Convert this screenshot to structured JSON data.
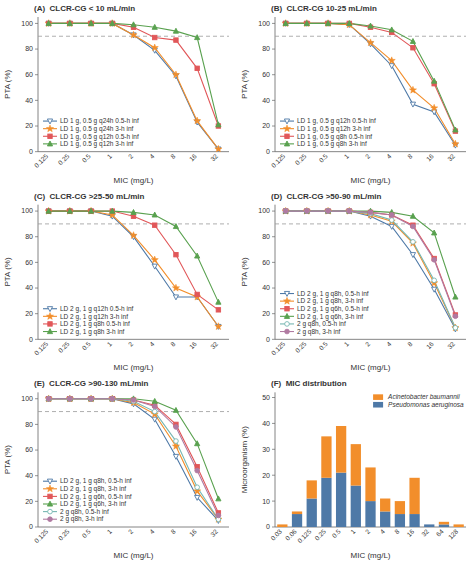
{
  "chart_data": [
    {
      "type": "line",
      "title": "(A)  CLCR-CG < 10 mL/min",
      "x_label": "MIC (mg/L)",
      "y_label": "PTA (%)",
      "categories": [
        "0.125",
        "0.25",
        "0.5",
        "1",
        "2",
        "4",
        "8",
        "16",
        "32"
      ],
      "series": [
        {
          "name": "LD 1 g, 0.5 g q24h 0.5-h inf",
          "marker": "triangle-down-open",
          "color": "#4e79a7",
          "values": [
            100,
            100,
            100,
            100,
            91,
            79,
            59,
            23,
            2
          ]
        },
        {
          "name": "LD 1 g, 0.5 g q24h 3-h inf",
          "marker": "star",
          "color": "#f28e2b",
          "values": [
            100,
            100,
            100,
            100,
            91,
            81,
            60,
            24,
            2
          ]
        },
        {
          "name": "LD 1 g, 0.5 g q12h 0.5-h inf",
          "marker": "square",
          "color": "#e15759",
          "values": [
            100,
            100,
            100,
            100,
            97,
            89,
            87,
            65,
            20
          ]
        },
        {
          "name": "LD 1 g, 0.5 g q12h 3-h inf",
          "marker": "triangle-up",
          "color": "#59a14f",
          "values": [
            100,
            100,
            100,
            100,
            99,
            97,
            94,
            89,
            21
          ]
        }
      ],
      "threshold": 90,
      "ylim": [
        0,
        105
      ],
      "yticks": [
        0,
        20,
        40,
        60,
        80,
        100
      ],
      "legend": "lower left",
      "grid": false
    },
    {
      "type": "line",
      "title": "(B)  CLCR-CG 10-25 mL/min",
      "x_label": "MIC (mg/L)",
      "y_label": "PTA (%)",
      "categories": [
        "0.125",
        "0.25",
        "0.5",
        "1",
        "2",
        "4",
        "8",
        "16",
        "32"
      ],
      "series": [
        {
          "name": "LD 1 g, 0.5 g q12h 0.5-h inf",
          "marker": "triangle-down-open",
          "color": "#4e79a7",
          "values": [
            100,
            100,
            100,
            99,
            84,
            67,
            37,
            31,
            5
          ]
        },
        {
          "name": "LD 1 g, 0.5 g q12h 3-h inf",
          "marker": "star",
          "color": "#f28e2b",
          "values": [
            100,
            100,
            100,
            99,
            85,
            71,
            48,
            34,
            6
          ]
        },
        {
          "name": "LD 1 g, 0.5 g q8h 0.5-h inf",
          "marker": "square",
          "color": "#e15759",
          "values": [
            100,
            100,
            100,
            100,
            97,
            93,
            81,
            53,
            16
          ]
        },
        {
          "name": "LD 1 g, 0.5 g q8h 3-h inf",
          "marker": "triangle-up",
          "color": "#59a14f",
          "values": [
            100,
            100,
            100,
            100,
            98,
            95,
            86,
            55,
            17
          ]
        }
      ],
      "threshold": 90,
      "ylim": [
        0,
        105
      ],
      "yticks": [
        0,
        20,
        40,
        60,
        80,
        100
      ],
      "legend": "lower left",
      "grid": false
    },
    {
      "type": "line",
      "title": "(C)  CLCR-CG >25-50 mL/min",
      "x_label": "MIC (mg/L)",
      "y_label": "PTA (%)",
      "categories": [
        "0.125",
        "0.25",
        "0.5",
        "1",
        "2",
        "4",
        "8",
        "16",
        "32"
      ],
      "series": [
        {
          "name": "LD 2 g, 1 g q12h 0.5-h inf",
          "marker": "triangle-down-open",
          "color": "#4e79a7",
          "values": [
            100,
            100,
            100,
            96,
            80,
            57,
            33,
            33,
            10
          ]
        },
        {
          "name": "LD 2 g, 1 g q12h 3-h inf",
          "marker": "star",
          "color": "#f28e2b",
          "values": [
            100,
            100,
            100,
            97,
            81,
            62,
            40,
            33,
            10
          ]
        },
        {
          "name": "LD 2 g, 1 g q8h 0.5-h inf",
          "marker": "square",
          "color": "#e15759",
          "values": [
            100,
            100,
            100,
            100,
            96,
            89,
            66,
            35,
            23
          ]
        },
        {
          "name": "LD 2 g, 1 g q8h 3-h inf",
          "marker": "triangle-up",
          "color": "#59a14f",
          "values": [
            100,
            100,
            100,
            100,
            99,
            97,
            88,
            65,
            29
          ]
        }
      ],
      "threshold": 90,
      "ylim": [
        0,
        105
      ],
      "yticks": [
        0,
        20,
        40,
        60,
        80,
        100
      ],
      "legend": "lower left",
      "grid": false
    },
    {
      "type": "line",
      "title": "(D)  CLCR-CG >50-90 mL/min",
      "x_label": "MIC (mg/L)",
      "y_label": "PTA (%)",
      "categories": [
        "0.125",
        "0.25",
        "0.5",
        "1",
        "2",
        "4",
        "8",
        "16",
        "32"
      ],
      "series": [
        {
          "name": "LD 2 g, 1 g q8h, 0.5-h inf",
          "marker": "triangle-down-open",
          "color": "#4e79a7",
          "values": [
            100,
            100,
            100,
            100,
            96,
            88,
            66,
            39,
            8
          ]
        },
        {
          "name": "LD 2 g, 1 g q8h, 3-h inf",
          "marker": "star",
          "color": "#f28e2b",
          "values": [
            100,
            100,
            100,
            100,
            97,
            92,
            75,
            44,
            9
          ]
        },
        {
          "name": "LD 2 g, 1 g q6h, 0.5-h inf",
          "marker": "square",
          "color": "#e15759",
          "values": [
            100,
            100,
            100,
            100,
            99,
            97,
            89,
            63,
            19
          ]
        },
        {
          "name": "LD 2 g, 1 g q6h, 3-h inf",
          "marker": "triangle-up",
          "color": "#59a14f",
          "values": [
            100,
            100,
            100,
            100,
            100,
            99,
            96,
            83,
            33
          ]
        },
        {
          "name": "2 g q8h, 0.5-h inf",
          "marker": "circle-open",
          "color": "#76b7b2",
          "values": [
            100,
            100,
            100,
            100,
            98,
            93,
            76,
            46,
            9
          ]
        },
        {
          "name": "2 g q8h, 3-h inf",
          "marker": "circle",
          "color": "#b07aa1",
          "values": [
            100,
            100,
            100,
            100,
            99,
            97,
            88,
            62,
            18
          ]
        }
      ],
      "threshold": 90,
      "ylim": [
        0,
        105
      ],
      "yticks": [
        0,
        20,
        40,
        60,
        80,
        100
      ],
      "legend": "lower left",
      "grid": false
    },
    {
      "type": "line",
      "title": "(E)  CLCR-CG >90-130 mL/min",
      "x_label": "MIC (mg/L)",
      "y_label": "PTA (%)",
      "categories": [
        "0.125",
        "0.25",
        "0.5",
        "1",
        "2",
        "4",
        "8",
        "16",
        "32"
      ],
      "series": [
        {
          "name": "LD 2 g, 1 g q8h, 0.5-h inf",
          "marker": "triangle-down-open",
          "color": "#4e79a7",
          "values": [
            100,
            100,
            100,
            100,
            96,
            84,
            55,
            23,
            5
          ]
        },
        {
          "name": "LD 2 g, 1 g q8h, 3-h inf",
          "marker": "star",
          "color": "#f28e2b",
          "values": [
            100,
            100,
            100,
            100,
            97,
            88,
            63,
            28,
            6
          ]
        },
        {
          "name": "LD 2 g, 1 g q6h, 0.5-h inf",
          "marker": "square",
          "color": "#e15759",
          "values": [
            100,
            100,
            100,
            100,
            99,
            95,
            80,
            47,
            11
          ]
        },
        {
          "name": "LD 2 g, 1 g q6h, 3-h inf",
          "marker": "triangle-up",
          "color": "#59a14f",
          "values": [
            100,
            100,
            100,
            100,
            100,
            98,
            91,
            65,
            22
          ]
        },
        {
          "name": "2 g q8h, 0.5-h inf",
          "marker": "circle-open",
          "color": "#76b7b2",
          "values": [
            100,
            100,
            100,
            100,
            98,
            90,
            67,
            31,
            6
          ]
        },
        {
          "name": "2 g q8h, 3-h inf",
          "marker": "circle",
          "color": "#b07aa1",
          "values": [
            100,
            100,
            100,
            100,
            99,
            94,
            78,
            44,
            9
          ]
        }
      ],
      "threshold": 90,
      "ylim": [
        0,
        105
      ],
      "yticks": [
        0,
        20,
        40,
        60,
        80,
        100
      ],
      "legend": "lower left",
      "grid": false
    },
    {
      "type": "bar",
      "stacked": true,
      "title": "(F)  MIC distribution",
      "x_label": "MIC (mg/L)",
      "y_label": "Microorganism (%)",
      "categories": [
        "0.03",
        "0.06",
        "0.125",
        "0.25",
        "0.5",
        "1",
        "2",
        "4",
        "8",
        "16",
        "32",
        "64",
        "128"
      ],
      "series": [
        {
          "name": "Pseudomonas aeruginosa",
          "color": "#4e79a7",
          "values": [
            0,
            5,
            11,
            19,
            21,
            16,
            10,
            6,
            5,
            5,
            1,
            1,
            0
          ]
        },
        {
          "name": "Acinetobacter baumannii",
          "color": "#f28e2b",
          "values": [
            1,
            1,
            7,
            16,
            18,
            16,
            13,
            5,
            5,
            14,
            0,
            1,
            1
          ]
        }
      ],
      "ylim": [
        0,
        52
      ],
      "yticks": [
        0,
        10,
        20,
        30,
        40,
        50
      ],
      "legend": "upper right",
      "grid": false
    }
  ]
}
